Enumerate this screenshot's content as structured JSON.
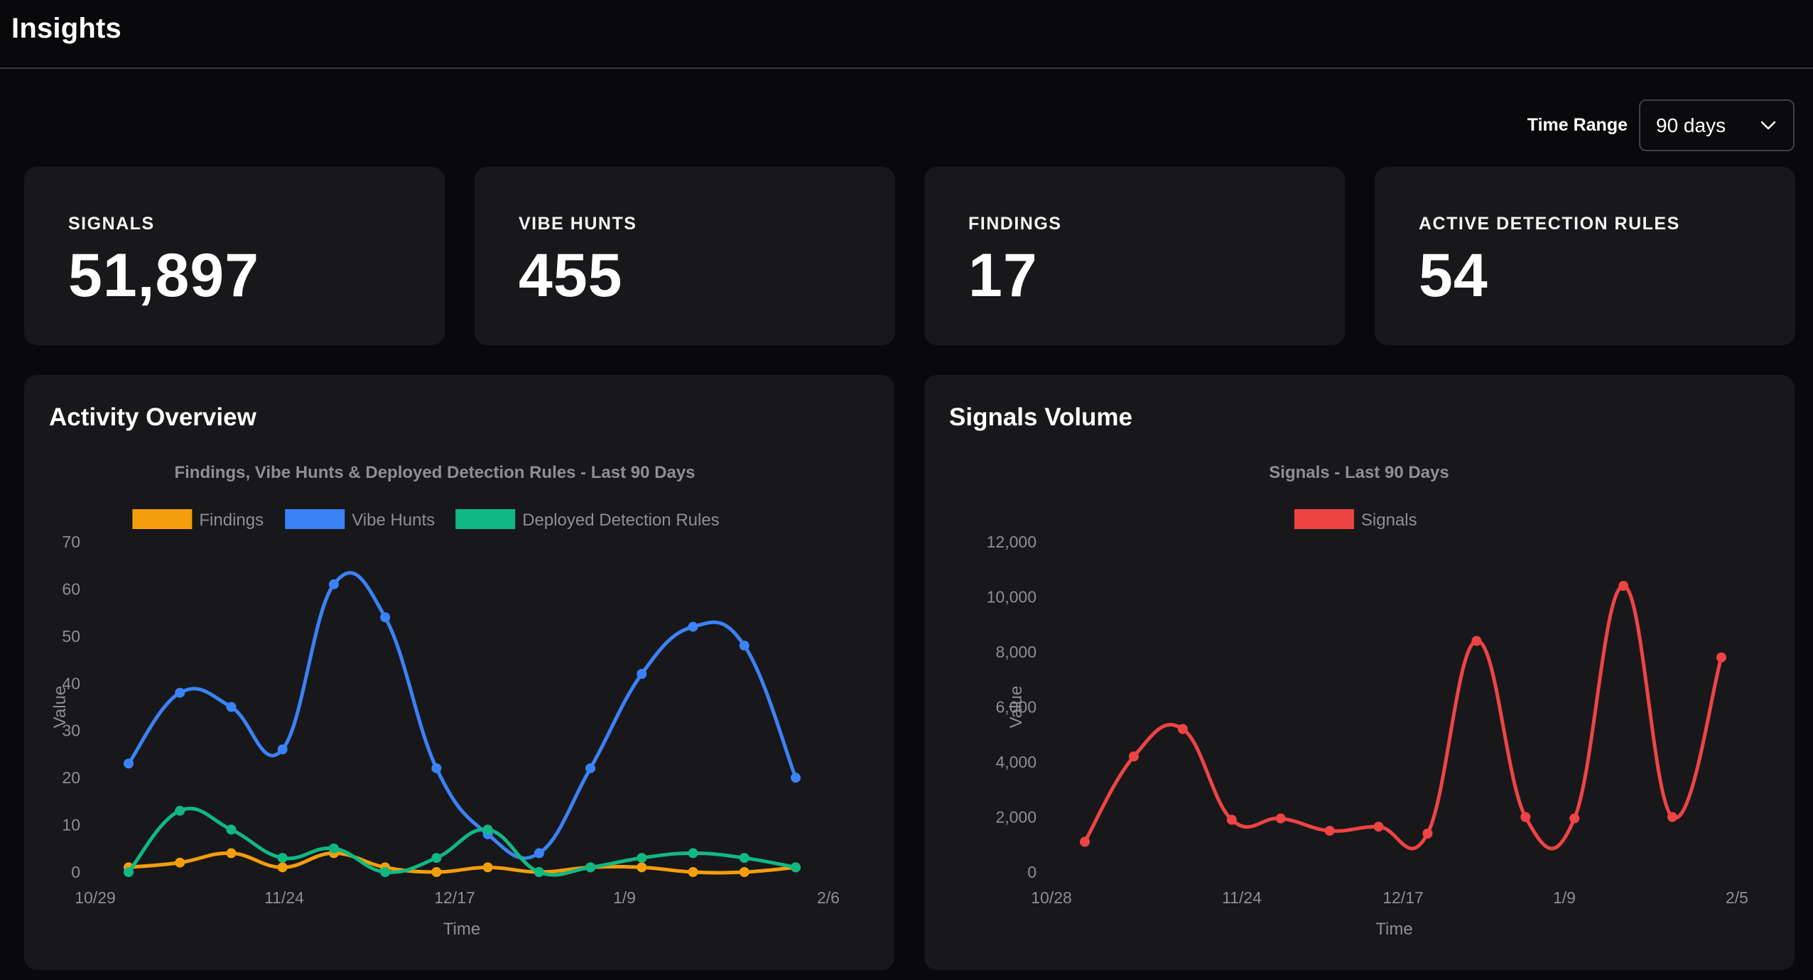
{
  "header": {
    "title": "Insights"
  },
  "time_range": {
    "label": "Time Range",
    "selected": "90 days"
  },
  "stats": [
    {
      "label": "SIGNALS",
      "value": "51,897"
    },
    {
      "label": "VIBE HUNTS",
      "value": "455"
    },
    {
      "label": "FINDINGS",
      "value": "17"
    },
    {
      "label": "ACTIVE DETECTION RULES",
      "value": "54"
    }
  ],
  "panels": {
    "activity": {
      "title": "Activity Overview"
    },
    "signals": {
      "title": "Signals Volume"
    }
  },
  "chart_data": [
    {
      "type": "line",
      "title": "Findings, Vibe Hunts & Deployed Detection Rules - Last 90 Days",
      "xlabel": "Time",
      "ylabel": "Value",
      "x_ticks": [
        "10/29",
        "11/24",
        "12/17",
        "1/9",
        "2/6"
      ],
      "y_ticks": [
        "0",
        "10",
        "20",
        "30",
        "40",
        "50",
        "60",
        "70"
      ],
      "ylim": [
        0,
        70
      ],
      "x": [
        "11/4",
        "11/11",
        "11/18",
        "11/25",
        "12/2",
        "12/9",
        "12/16",
        "12/23",
        "12/30",
        "1/6",
        "1/13",
        "1/20",
        "1/27",
        "2/3"
      ],
      "grid": false,
      "legend": "top-center",
      "series": [
        {
          "name": "Findings",
          "color": "#f59e0b",
          "values": [
            1,
            2,
            4,
            1,
            4,
            1,
            0,
            1,
            0,
            1,
            1,
            0,
            0,
            1
          ]
        },
        {
          "name": "Vibe Hunts",
          "color": "#3b82f6",
          "values": [
            23,
            38,
            35,
            26,
            61,
            54,
            22,
            8,
            4,
            22,
            42,
            52,
            48,
            20
          ]
        },
        {
          "name": "Deployed Detection Rules",
          "color": "#10b981",
          "values": [
            0,
            13,
            9,
            3,
            5,
            0,
            3,
            9,
            0,
            1,
            3,
            4,
            3,
            1
          ]
        }
      ]
    },
    {
      "type": "line",
      "title": "Signals - Last 90 Days",
      "xlabel": "Time",
      "ylabel": "Value",
      "x_ticks": [
        "10/28",
        "11/24",
        "12/17",
        "1/9",
        "2/5"
      ],
      "y_ticks": [
        "0",
        "2,000",
        "4,000",
        "6,000",
        "8,000",
        "10,000",
        "12,000"
      ],
      "ylim": [
        0,
        12000
      ],
      "x": [
        "11/3",
        "11/10",
        "11/17",
        "11/24",
        "12/1",
        "12/8",
        "12/15",
        "12/22",
        "12/29",
        "1/5",
        "1/12",
        "1/19",
        "1/26",
        "2/2"
      ],
      "grid": false,
      "legend": "top-center",
      "series": [
        {
          "name": "Signals",
          "color": "#ef4444",
          "values": [
            1100,
            4200,
            5200,
            1900,
            1950,
            1500,
            1650,
            1400,
            8400,
            2000,
            1950,
            10400,
            2000,
            7800
          ]
        }
      ]
    }
  ]
}
